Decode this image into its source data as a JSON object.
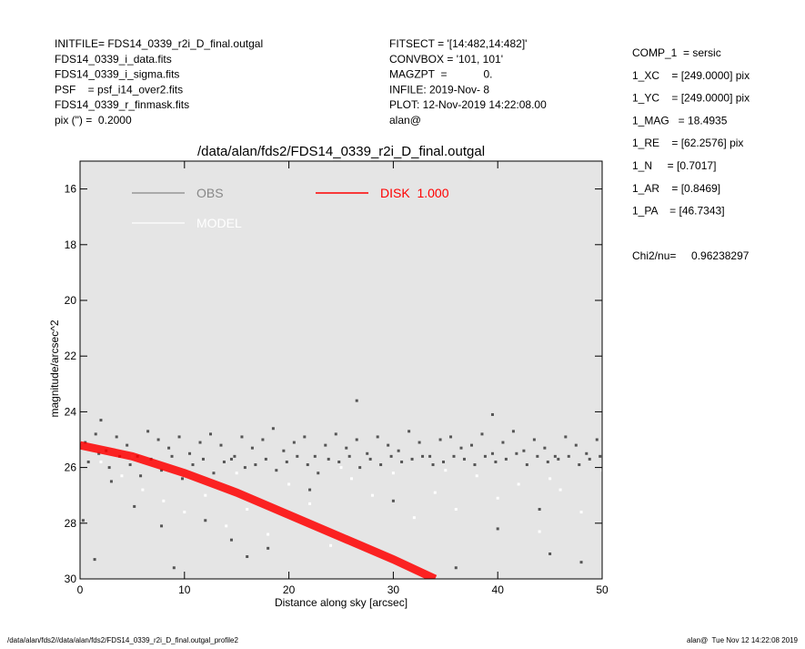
{
  "header": {
    "left": [
      "INITFILE= FDS14_0339_r2i_D_final.outgal",
      "FDS14_0339_i_data.fits",
      "FDS14_0339_i_sigma.fits",
      "PSF    = psf_i14_over2.fits",
      "FDS14_0339_r_finmask.fits",
      "pix (\") =  0.2000"
    ],
    "middle": [
      "FITSECT = '[14:482,14:482]'",
      "CONVBOX = '101, 101'",
      "MAGZPT  =            0.",
      "INFILE: 2019-Nov- 8",
      "PLOT: 12-Nov-2019 14:22:08.00",
      "alan@"
    ],
    "right": [
      "COMP_1  = sersic",
      "1_XC    = [249.0000] pix",
      "1_YC    = [249.0000] pix",
      "1_MAG   = 18.4935",
      "1_RE    = [62.2576] pix",
      "1_N     = [0.7017]",
      "1_AR    = [0.8469]",
      "1_PA    = [46.7343]"
    ],
    "chi2": "Chi2/nu=     0.96238297"
  },
  "footer": {
    "left": "/data/alan/fds2//data/alan/fds2/FDS14_0339_r2i_D_final.outgal_profile2",
    "right": "alan@  Tue Nov 12 14:22:08 2019"
  },
  "chart_data": {
    "type": "scatter",
    "title": "/data/alan/fds2/FDS14_0339_r2i_D_final.outgal",
    "x_label": "Distance along sky [arcsec]",
    "y_label": "magnitude/arcsec^2",
    "xlim": [
      0,
      50
    ],
    "xticks": [
      0,
      10,
      20,
      30,
      40,
      50
    ],
    "ylim": [
      15,
      30
    ],
    "yticks": [
      16,
      18,
      20,
      22,
      24,
      26,
      28,
      30
    ],
    "y_inverted": true,
    "background": "#e5e5e5",
    "series": [
      {
        "name": "MODEL",
        "color": "#ffffff",
        "type": "scatter",
        "x": [
          2,
          4,
          6,
          8,
          10,
          12,
          14,
          16,
          18,
          20,
          22,
          24,
          26,
          28,
          30,
          32,
          34,
          36,
          38,
          40,
          42,
          44,
          46,
          48,
          50,
          5,
          15,
          25,
          35,
          45
        ],
        "values": [
          25.8,
          26.3,
          26.8,
          27.2,
          27.6,
          27.0,
          28.1,
          27.5,
          28.4,
          26.6,
          27.3,
          28.8,
          26.4,
          27.0,
          26.2,
          27.8,
          26.9,
          27.5,
          26.3,
          27.1,
          26.6,
          28.3,
          26.8,
          27.6,
          26.1,
          25.6,
          26.2,
          26.0,
          26.1,
          26.4
        ]
      },
      {
        "name": "OBS",
        "color": "#555555",
        "type": "scatter",
        "x": [
          0.5,
          1.5,
          2.5,
          3.5,
          4.5,
          5.5,
          6.5,
          7.5,
          8.5,
          9.5,
          10.5,
          11.5,
          12.5,
          13.5,
          14.5,
          15.5,
          16.5,
          17.5,
          18.5,
          19.5,
          20.5,
          21.5,
          22.5,
          23.5,
          24.5,
          25.5,
          26.5,
          27.5,
          28.5,
          29.5,
          30.5,
          31.5,
          32.5,
          33.5,
          34.5,
          35.5,
          36.5,
          37.5,
          38.5,
          39.5,
          40.5,
          41.5,
          42.5,
          43.5,
          44.5,
          45.5,
          46.5,
          47.5,
          48.5,
          49.5,
          0.8,
          1.8,
          2.8,
          3.8,
          4.8,
          5.8,
          6.8,
          7.8,
          8.8,
          9.8,
          10.8,
          11.8,
          12.8,
          13.8,
          14.8,
          15.8,
          16.8,
          17.8,
          18.8,
          19.8,
          20.8,
          21.8,
          22.8,
          23.8,
          24.8,
          25.8,
          26.8,
          27.8,
          28.8,
          29.8,
          30.8,
          31.8,
          32.8,
          33.8,
          34.8,
          35.8,
          36.8,
          37.8,
          38.8,
          39.8,
          40.8,
          41.8,
          42.8,
          43.8,
          44.8,
          45.8,
          46.8,
          47.8,
          48.8,
          49.8,
          0.3,
          1.4,
          3,
          5.2,
          7.8,
          9,
          12,
          14.5,
          16,
          18,
          26.5,
          36,
          40,
          45,
          48,
          39.5,
          22,
          30,
          44,
          2
        ],
        "values": [
          25.1,
          24.8,
          25.4,
          24.9,
          25.2,
          25.6,
          24.7,
          25.0,
          25.3,
          24.9,
          25.5,
          25.1,
          24.8,
          25.2,
          25.7,
          24.9,
          25.3,
          25.0,
          24.6,
          25.4,
          25.1,
          24.9,
          25.6,
          25.2,
          24.8,
          25.3,
          25.0,
          25.5,
          24.9,
          25.2,
          25.4,
          24.7,
          25.1,
          25.6,
          25.0,
          24.9,
          25.3,
          25.2,
          24.8,
          25.5,
          25.1,
          24.7,
          25.4,
          25.0,
          25.3,
          25.6,
          24.9,
          25.2,
          25.5,
          25.0,
          25.8,
          25.5,
          26.0,
          25.6,
          25.9,
          26.3,
          25.7,
          26.1,
          25.6,
          26.4,
          25.9,
          25.7,
          26.2,
          25.8,
          25.6,
          26.0,
          25.9,
          25.7,
          26.1,
          25.8,
          25.6,
          25.9,
          26.2,
          25.7,
          25.8,
          25.6,
          26.0,
          25.7,
          25.9,
          25.6,
          25.8,
          25.7,
          25.6,
          25.9,
          25.8,
          25.6,
          25.7,
          25.9,
          25.6,
          25.8,
          25.7,
          25.5,
          25.9,
          25.6,
          25.8,
          25.7,
          25.6,
          25.9,
          25.7,
          25.6,
          27.9,
          29.3,
          26.5,
          27.4,
          28.1,
          29.6,
          27.9,
          28.6,
          29.2,
          28.9,
          23.6,
          29.6,
          28.2,
          29.1,
          29.4,
          24.1,
          26.8,
          27.2,
          27.5,
          24.3
        ]
      },
      {
        "name": "DISK  1.000",
        "color": "#ff0000",
        "type": "line",
        "x": [
          0,
          5,
          10,
          15,
          20,
          25,
          30,
          34
        ],
        "values": [
          25.2,
          25.6,
          26.2,
          26.9,
          27.7,
          28.5,
          29.3,
          30.0
        ]
      }
    ]
  }
}
